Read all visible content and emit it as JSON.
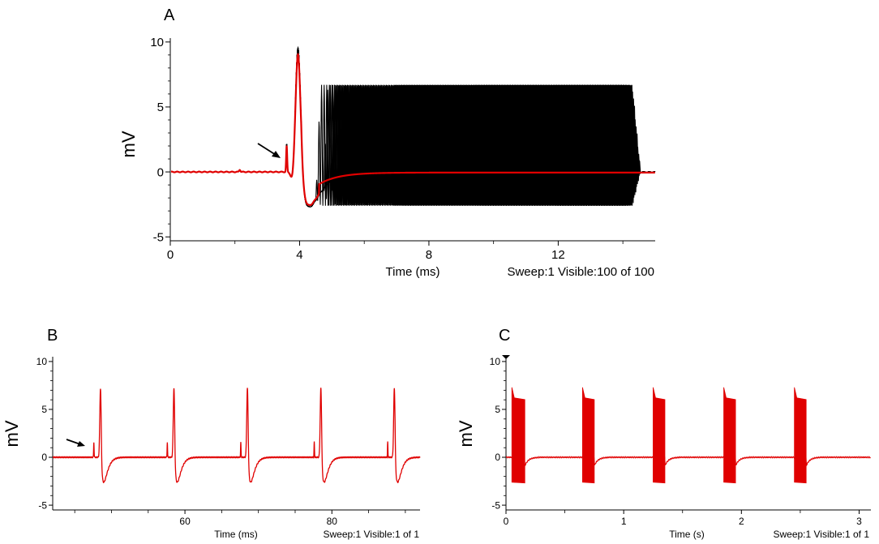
{
  "chart_data": [
    {
      "panel": "A",
      "type": "line",
      "ylabel": "mV",
      "xlabel": "Time (ms)",
      "footer": "Sweep:1 Visible:100 of 100",
      "xlim": [
        0,
        15
      ],
      "ylim": [
        -5.3,
        10.3
      ],
      "x_ticks": [
        0,
        4,
        8,
        12
      ],
      "y_ticks": [
        -5,
        0,
        5,
        10
      ],
      "sweeps": {
        "count": 100,
        "highlighted": 1,
        "colors": {
          "sweeps": "#000000",
          "highlight": "#e00000"
        }
      },
      "features": {
        "stimulus_artifact_time": 3.6,
        "spike_peak": {
          "x": 3.95,
          "y": 9.5
        },
        "spike_trough": {
          "x": 4.3,
          "y": -2.7
        },
        "train_onset_range": [
          4.5,
          12.0
        ],
        "train_end_time": 14.0,
        "train_upper_mV": 6.7,
        "train_lower_mV": -2.6
      },
      "arrow": {
        "points_to_x": 3.6,
        "label": ""
      }
    },
    {
      "panel": "B",
      "type": "line",
      "ylabel": "mV",
      "xlabel": "Time (ms)",
      "footer": "Sweep:1 Visible:1 of 1",
      "xlim": [
        42,
        92
      ],
      "ylim": [
        -5.5,
        10.5
      ],
      "x_ticks": [
        60,
        80
      ],
      "y_ticks": [
        -5,
        0,
        5,
        10
      ],
      "color": "#e00000",
      "spike_times_ms": [
        48.5,
        58.5,
        68.5,
        78.5,
        88.5
      ],
      "spike_peak_mV": 7.2,
      "spike_trough_mV": -2.6
    },
    {
      "panel": "C",
      "type": "line",
      "ylabel": "mV",
      "xlabel": "Time (s)",
      "footer": "Sweep:1 Visible:1 of 1",
      "xlim": [
        0,
        3.1
      ],
      "ylim": [
        -5.5,
        10.5
      ],
      "x_ticks": [
        0,
        1,
        2,
        3
      ],
      "y_ticks": [
        -5,
        0,
        5,
        10
      ],
      "color": "#e00000",
      "bursts": [
        {
          "start": 0.05,
          "end": 0.16
        },
        {
          "start": 0.65,
          "end": 0.75
        },
        {
          "start": 1.25,
          "end": 1.35
        },
        {
          "start": 1.85,
          "end": 1.95
        },
        {
          "start": 2.45,
          "end": 2.55
        }
      ],
      "burst_upper_mV": 6.2,
      "burst_lower_mV": -2.6
    }
  ]
}
